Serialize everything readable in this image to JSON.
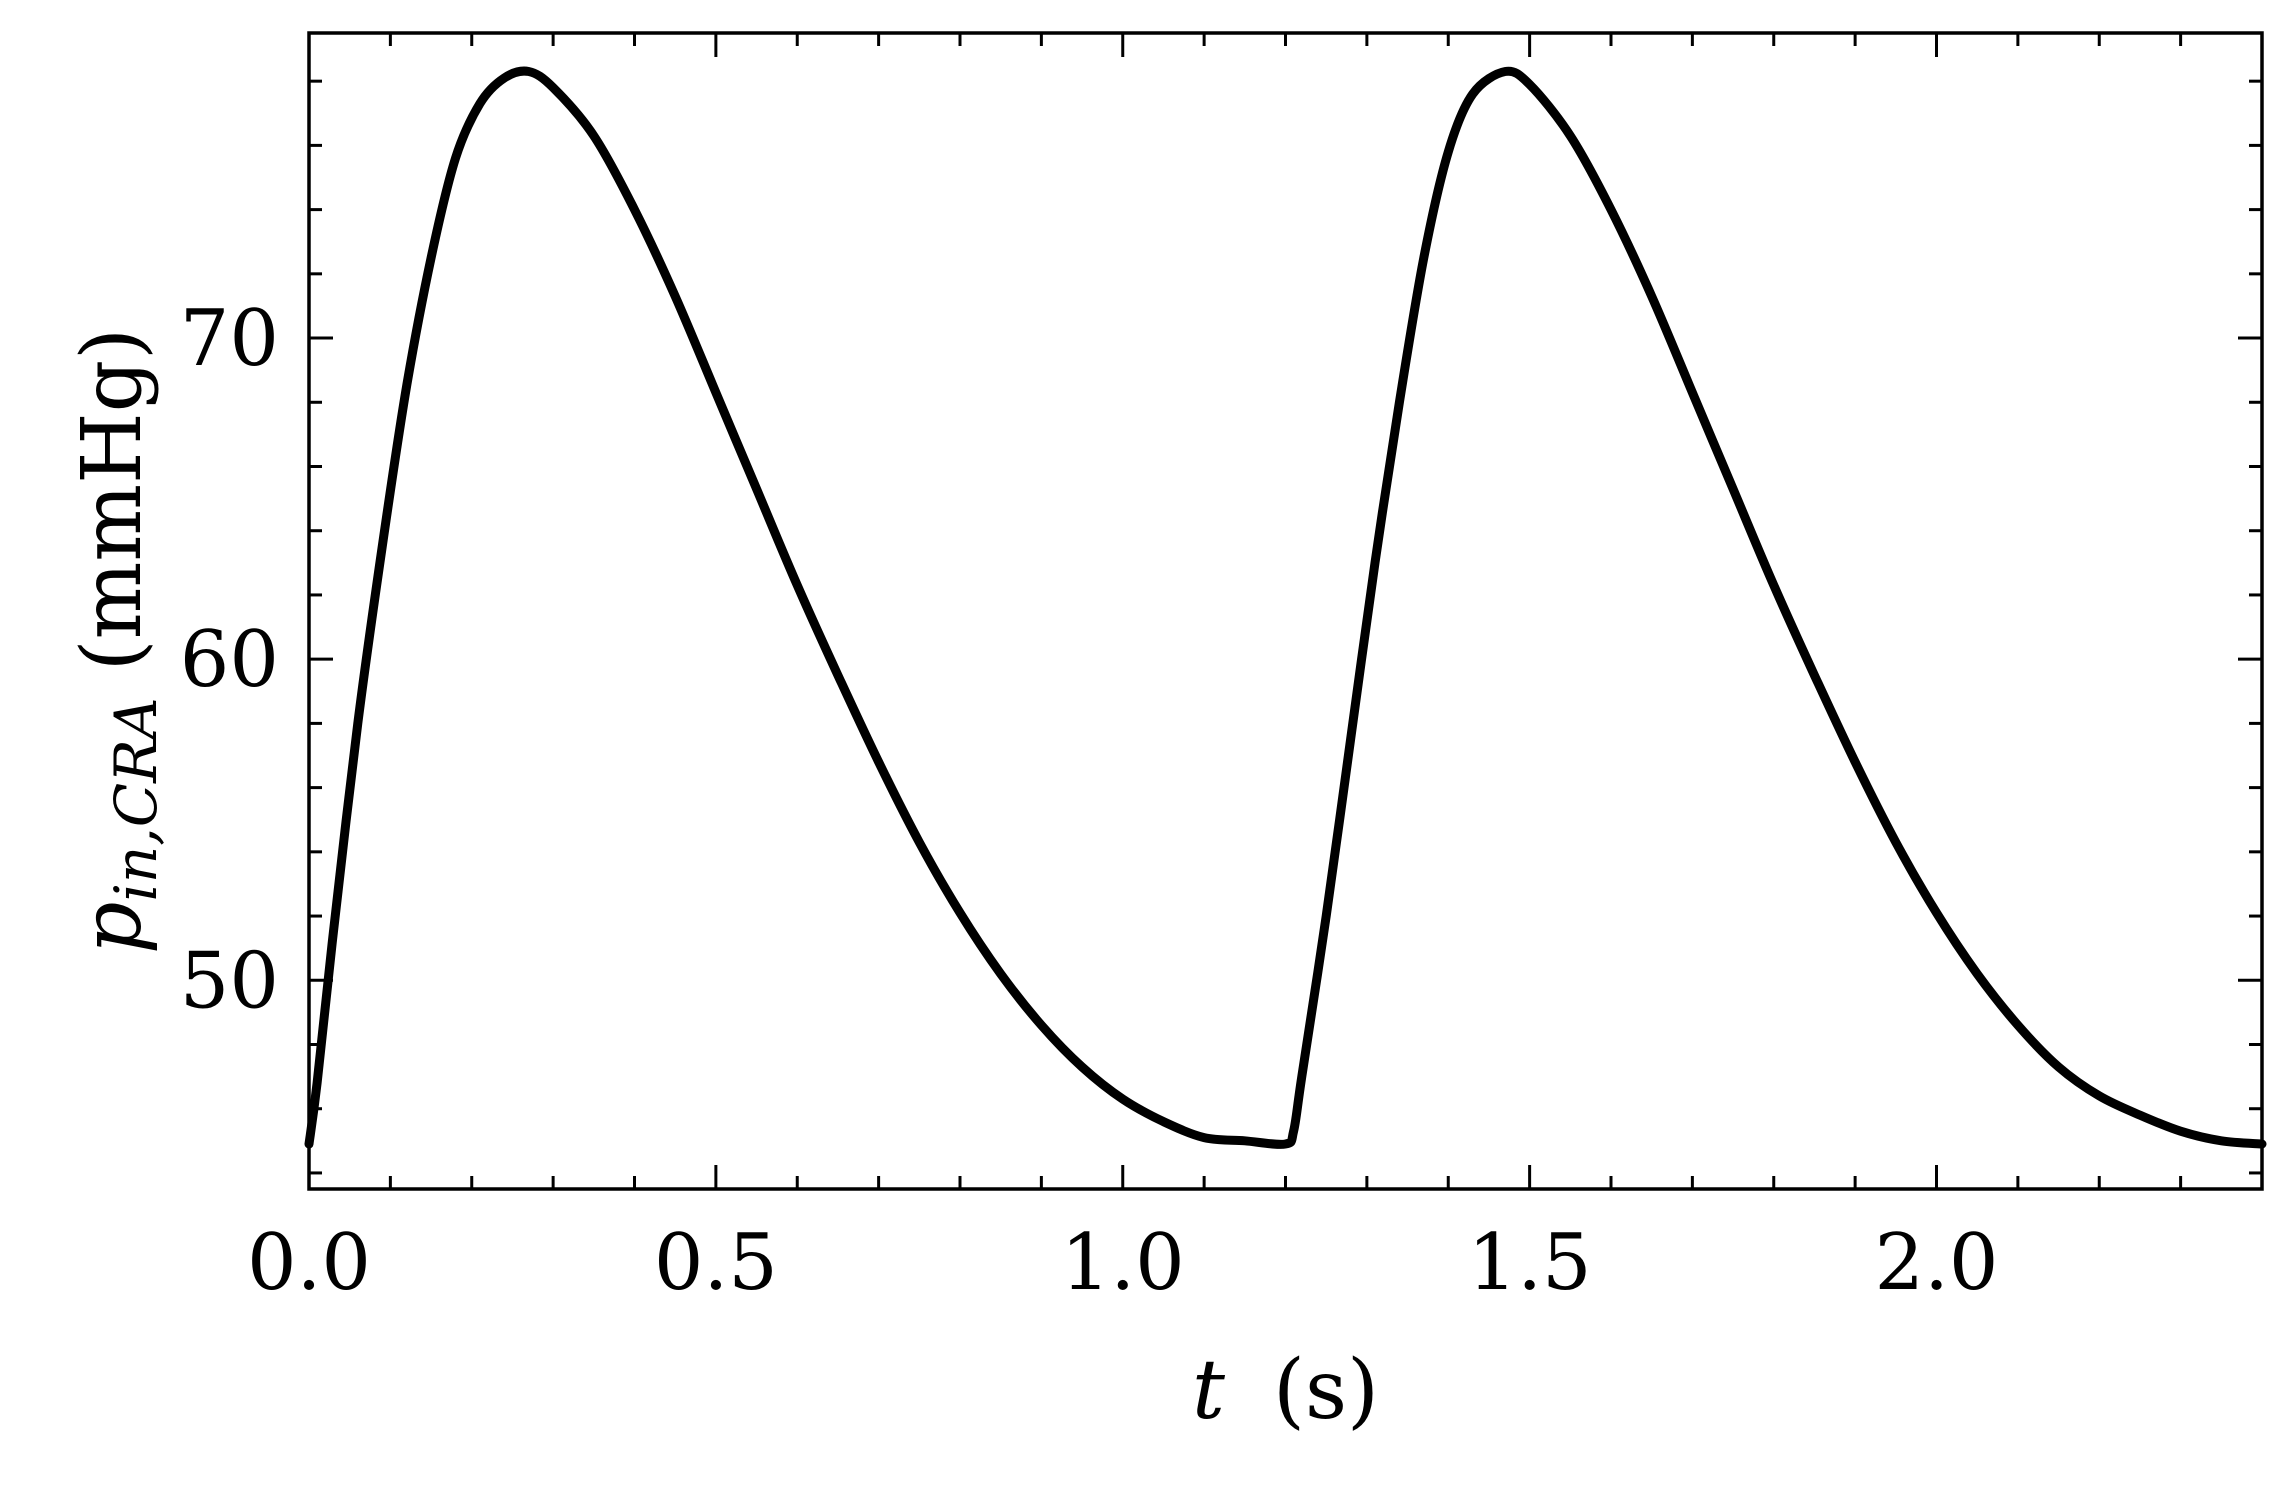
{
  "chart_data": {
    "type": "line",
    "title": "",
    "xlabel": {
      "var": "t",
      "unit": "(s)"
    },
    "ylabel": {
      "var": "p",
      "subscript": "in,CRA",
      "unit": "(mmHg)"
    },
    "xlim": [
      0.0,
      2.4
    ],
    "ylim": [
      43.5,
      79.5
    ],
    "x_ticks": [
      0.0,
      0.5,
      1.0,
      1.5,
      2.0
    ],
    "x_tick_labels": [
      "0.0",
      "0.5",
      "1.0",
      "1.5",
      "2.0"
    ],
    "x_minor_step": 0.1,
    "y_ticks": [
      50,
      60,
      70
    ],
    "y_tick_labels": [
      "50",
      "60",
      "70"
    ],
    "y_minor_step": 2,
    "grid": false,
    "tick_direction": "in",
    "line_color": "#000000",
    "series": [
      {
        "x": [
          0.0,
          0.01,
          0.03,
          0.06,
          0.09,
          0.12,
          0.15,
          0.18,
          0.21,
          0.24,
          0.27,
          0.3,
          0.35,
          0.4,
          0.45,
          0.5,
          0.55,
          0.6,
          0.65,
          0.7,
          0.75,
          0.8,
          0.85,
          0.9,
          0.95,
          1.0,
          1.05,
          1.1,
          1.15,
          1.2,
          1.21,
          1.22,
          1.25,
          1.28,
          1.31,
          1.34,
          1.37,
          1.4,
          1.43,
          1.47,
          1.5,
          1.55,
          1.6,
          1.65,
          1.7,
          1.75,
          1.8,
          1.85,
          1.9,
          1.95,
          2.0,
          2.05,
          2.1,
          2.15,
          2.2,
          2.25,
          2.3,
          2.35,
          2.4
        ],
        "y": [
          44.9,
          46.8,
          51.5,
          58.0,
          63.5,
          68.5,
          72.5,
          75.6,
          77.3,
          78.1,
          78.3,
          77.8,
          76.3,
          74.0,
          71.3,
          68.3,
          65.3,
          62.3,
          59.5,
          56.8,
          54.3,
          52.1,
          50.2,
          48.6,
          47.3,
          46.3,
          45.6,
          45.1,
          45.0,
          44.9,
          45.3,
          47.0,
          52.0,
          57.5,
          63.0,
          68.0,
          72.5,
          75.8,
          77.6,
          78.3,
          77.9,
          76.3,
          74.0,
          71.3,
          68.3,
          65.3,
          62.3,
          59.5,
          56.8,
          54.3,
          52.1,
          50.2,
          48.6,
          47.3,
          46.4,
          45.8,
          45.3,
          45.0,
          44.9
        ]
      }
    ]
  }
}
